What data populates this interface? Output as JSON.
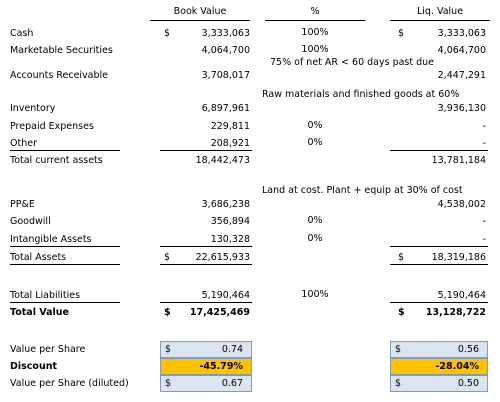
{
  "headers": {
    "book": "Book Value",
    "pct": "%",
    "liq": "Liq. Value"
  },
  "rows": [
    {
      "label": "Cash",
      "book_cur": "$",
      "book": "3,333,063",
      "pct": "100%",
      "liq_cur": "$",
      "liq": "3,333,063"
    },
    {
      "label": "Marketable Securities",
      "book": "4,064,700",
      "pct": "100%",
      "liq": "4,064,700"
    },
    {
      "label": "Accounts Receivable",
      "book": "3,708,017",
      "pct": "75% of net AR < 60 days past due",
      "liq": "2,447,291"
    },
    {
      "label": "Inventory",
      "book": "6,897,961",
      "pct": "Raw materials and finished goods at 60%",
      "liq": "3,936,130"
    },
    {
      "label": "Prepaid Expenses",
      "book": "229,811",
      "pct": "0%",
      "liq": "-"
    },
    {
      "label": "Other",
      "book": "208,921",
      "pct": "0%",
      "liq": "-"
    },
    {
      "label": "Total current assets",
      "book": "18,442,473",
      "liq": "13,781,184"
    },
    {
      "label": "PP&E",
      "book": "3,686,238",
      "pct": "Land at cost. Plant + equip at 30% of cost",
      "liq": "4,538,002"
    },
    {
      "label": "Goodwill",
      "book": "356,894",
      "pct": "0%",
      "liq": "-"
    },
    {
      "label": "Intangible Assets",
      "book": "130,328",
      "pct": "0%",
      "liq": "-"
    },
    {
      "label": "Total Assets",
      "book_cur": "$",
      "book": "22,615,933",
      "liq_cur": "$",
      "liq": "18,319,186"
    },
    {
      "label": "Total Liabilities",
      "book": "5,190,464",
      "pct": "100%",
      "liq": "5,190,464"
    },
    {
      "label": "Total Value",
      "book_cur": "$",
      "book": "17,425,469",
      "liq_cur": "$",
      "liq": "13,128,722"
    }
  ],
  "summary": [
    {
      "label": "Value per Share",
      "book_cur": "$",
      "book": "0.74",
      "liq_cur": "$",
      "liq": "0.56"
    },
    {
      "label": "Discount",
      "book": "-45.79%",
      "liq": "-28.04%"
    },
    {
      "label": "Value per Share (diluted)",
      "book_cur": "$",
      "book": "0.67",
      "liq_cur": "$",
      "liq": "0.50"
    }
  ],
  "colors": {
    "summary_fill": "#dbe5f1",
    "discount_fill": "#ffc000",
    "summary_border": "#7f9db9"
  }
}
